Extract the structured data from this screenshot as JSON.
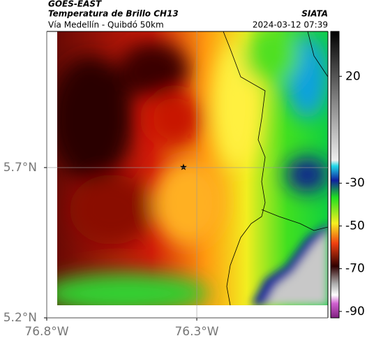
{
  "header": {
    "source": "GOES-EAST",
    "title": "Temperatura de Brillo CH13",
    "brand": "SIATA",
    "subtitle": "Vía Medellín - Quibdó 50km",
    "timestamp": "2024-03-12 07:39"
  },
  "map": {
    "xlim": [
      -76.8,
      -75.863
    ],
    "ylim": [
      5.2,
      6.153
    ],
    "xticks": [
      {
        "value": -76.8,
        "label": "76.8°W"
      },
      {
        "value": -76.3,
        "label": "76.3°W"
      }
    ],
    "yticks": [
      {
        "value": 5.2,
        "label": "5.2°N"
      },
      {
        "value": 5.7,
        "label": "5.7°N"
      }
    ],
    "grid": true
  },
  "colorbar": {
    "clim": [
      -93,
      41
    ],
    "ticks": [
      20,
      -30,
      -50,
      -70,
      -90
    ]
  }
}
